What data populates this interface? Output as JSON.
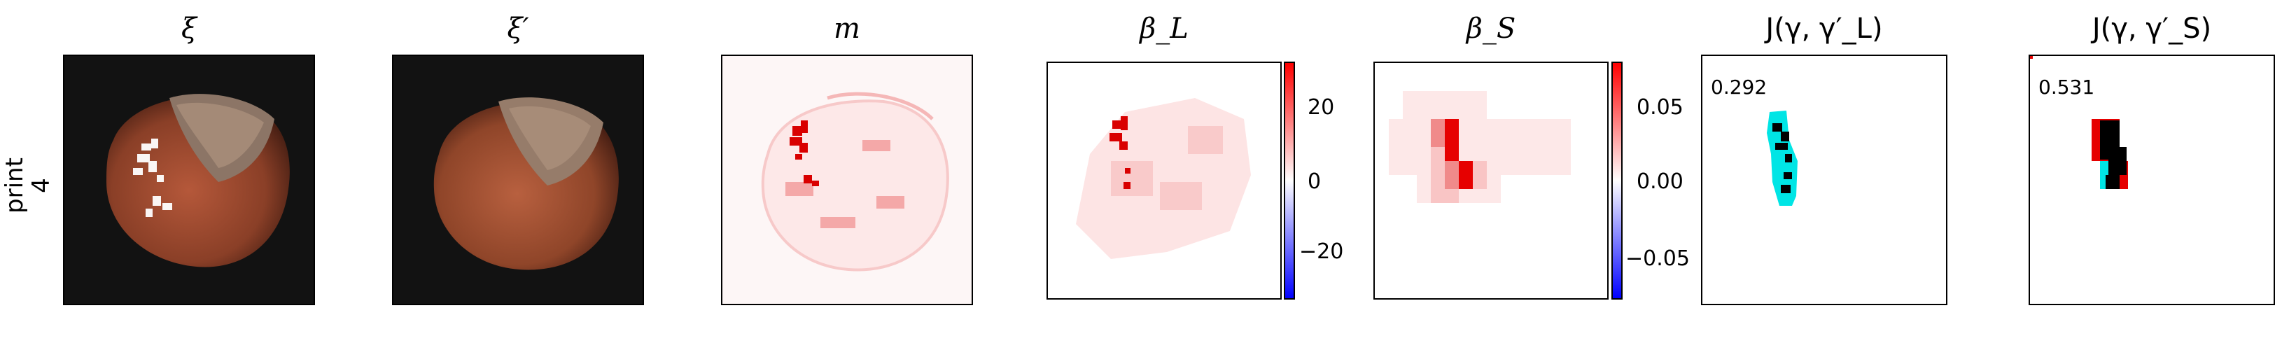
{
  "row_label": "print\n4",
  "panels": {
    "xi": {
      "title": "ξ"
    },
    "xi_prime": {
      "title": "ξ′"
    },
    "m": {
      "title": "m"
    },
    "beta_L": {
      "title": "β_L",
      "colorbar_ticks": [
        "20",
        "0",
        "−20"
      ]
    },
    "beta_S": {
      "title": "β_S",
      "colorbar_ticks": [
        "0.05",
        "0.00",
        "−0.05"
      ]
    },
    "J_L": {
      "title": "J(γ, γ′_L)",
      "score": "0.292"
    },
    "J_S": {
      "title": "J(γ, γ′_S)",
      "score": "0.531"
    }
  },
  "colors": {
    "background_photo": "#121212",
    "hazelnut": "#9a4a30",
    "saliency_red": "#e8000b",
    "overlay_cyan": "#00e5e5",
    "colormap_positive": "#ff0000",
    "colormap_negative": "#0000ff"
  }
}
